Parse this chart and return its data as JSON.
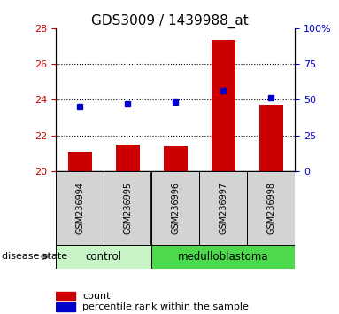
{
  "title": "GDS3009 / 1439988_at",
  "samples": [
    "GSM236994",
    "GSM236995",
    "GSM236996",
    "GSM236997",
    "GSM236998"
  ],
  "bar_values": [
    21.1,
    21.5,
    21.4,
    27.35,
    23.7
  ],
  "percentile_values": [
    23.6,
    23.75,
    23.85,
    24.5,
    24.1
  ],
  "bar_bottom": 20.0,
  "ylim_left": [
    20,
    28
  ],
  "ylim_right": [
    0,
    100
  ],
  "yticks_left": [
    20,
    22,
    24,
    26,
    28
  ],
  "yticks_right": [
    0,
    25,
    50,
    75,
    100
  ],
  "ctrl_color": "#c8f5c8",
  "med_color": "#4cd94c",
  "bar_color": "#cc0000",
  "percentile_color": "#0000cc",
  "bar_width": 0.5,
  "disease_state_label": "disease state",
  "legend_bar_label": "count",
  "legend_percentile_label": "percentile rank within the sample",
  "tick_color_left": "#cc0000",
  "tick_color_right": "#0000cc",
  "title_fontsize": 11,
  "legend_fontsize": 8,
  "sample_fontsize": 7
}
